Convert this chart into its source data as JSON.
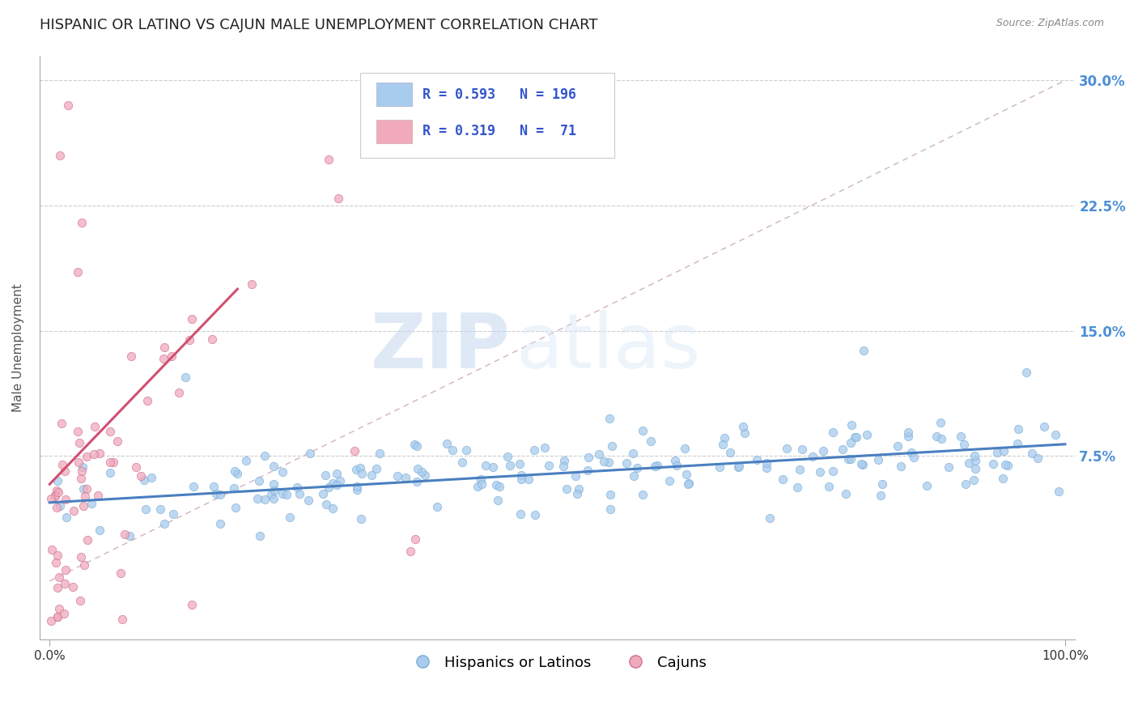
{
  "title": "HISPANIC OR LATINO VS CAJUN MALE UNEMPLOYMENT CORRELATION CHART",
  "source_text": "Source: ZipAtlas.com",
  "ylabel": "Male Unemployment",
  "watermark_zip": "ZIP",
  "watermark_atlas": "atlas",
  "xlim": [
    -0.01,
    1.01
  ],
  "ylim": [
    -0.035,
    0.315
  ],
  "ytick_positions": [
    0.075,
    0.15,
    0.225,
    0.3
  ],
  "ytick_labels": [
    "7.5%",
    "15.0%",
    "22.5%",
    "30.0%"
  ],
  "series": [
    {
      "name": "Hispanics or Latinos",
      "color": "#a8ccee",
      "edge_color": "#7aadd4",
      "R": 0.593,
      "N": 196,
      "trend_color": "#4a7fc0"
    },
    {
      "name": "Cajuns",
      "color": "#f0aabb",
      "edge_color": "#d07090",
      "R": 0.319,
      "N": 71,
      "trend_color": "#d05070"
    }
  ],
  "legend_text_color": "#3355cc",
  "title_fontsize": 13,
  "axis_label_fontsize": 11,
  "tick_fontsize": 11,
  "legend_fontsize": 12,
  "background_color": "#ffffff",
  "grid_color": "#c8c8c8",
  "ref_line_color": "#ccaabb",
  "blue_trend_x": [
    0.0,
    1.0
  ],
  "blue_trend_y": [
    0.047,
    0.082
  ],
  "pink_trend_x": [
    0.0,
    0.185
  ],
  "pink_trend_y": [
    0.058,
    0.175
  ]
}
